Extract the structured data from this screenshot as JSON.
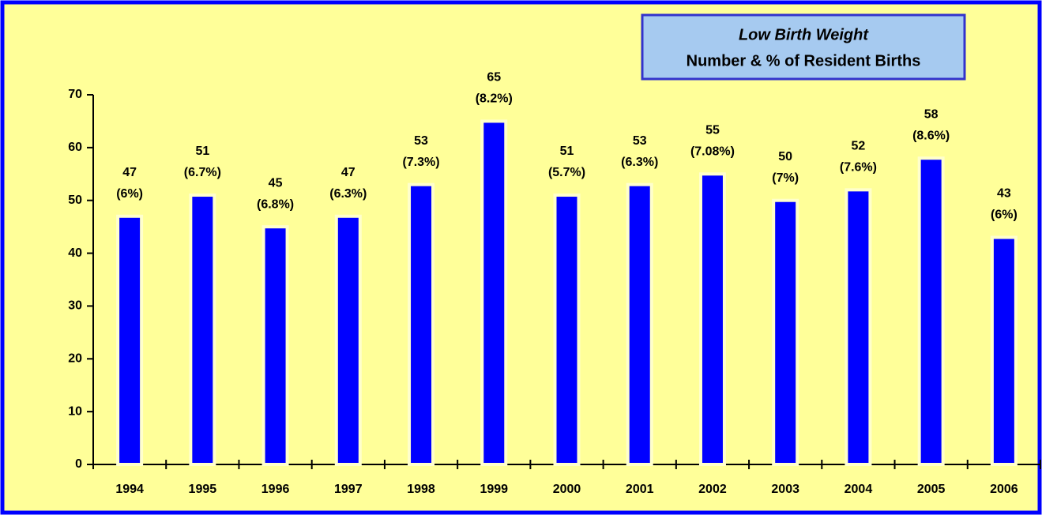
{
  "chart_data": {
    "type": "bar",
    "title": "Low Birth Weight",
    "subtitle": "Number & % of Resident Births",
    "categories": [
      "1994",
      "1995",
      "1996",
      "1997",
      "1998",
      "1999",
      "2000",
      "2001",
      "2002",
      "2003",
      "2004",
      "2005",
      "2006"
    ],
    "values": [
      47,
      51,
      45,
      47,
      53,
      65,
      51,
      53,
      55,
      50,
      52,
      58,
      43
    ],
    "percent_labels": [
      "(6%)",
      "(6.7%)",
      "(6.8%)",
      "(6.3%)",
      "(7.3%)",
      "(8.2%)",
      "(5.7%)",
      "(6.3%)",
      "(7.08%)",
      "(7%)",
      "(7.6%)",
      "(8.6%)",
      "(6%)"
    ],
    "color": "#0000ff",
    "ylim": [
      0,
      70
    ],
    "yticks": [
      0,
      10,
      20,
      30,
      40,
      50,
      60,
      70
    ],
    "grid": false
  }
}
